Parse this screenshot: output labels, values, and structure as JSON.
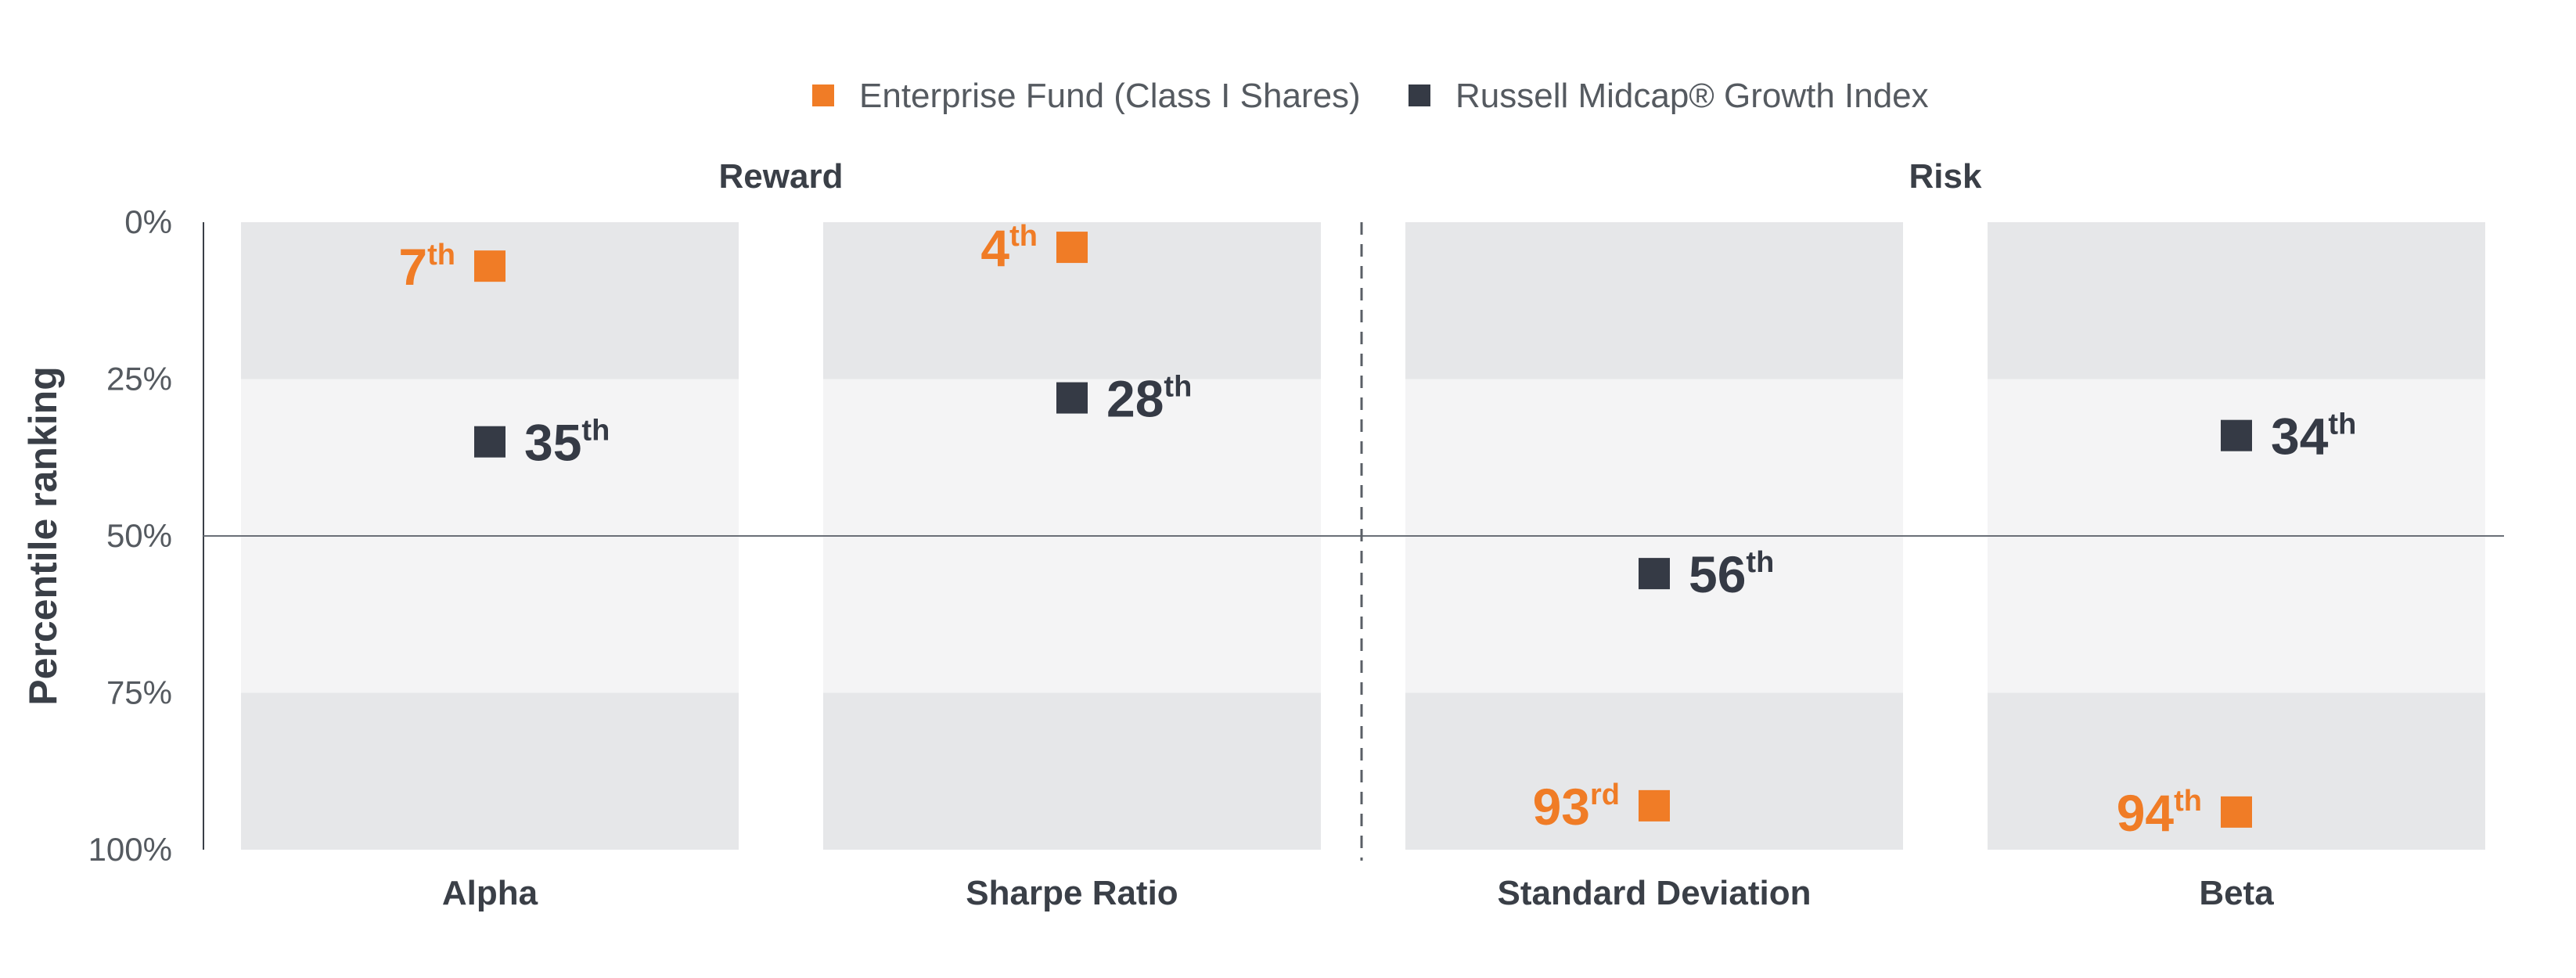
{
  "chart_data": {
    "type": "scatter",
    "ylabel": "Percentile ranking",
    "ylim": [
      0,
      100
    ],
    "y_inverted": true,
    "y_ticks": [
      {
        "value": 0,
        "label": "0%"
      },
      {
        "value": 25,
        "label": "25%"
      },
      {
        "value": 50,
        "label": "50%"
      },
      {
        "value": 75,
        "label": "75%"
      },
      {
        "value": 100,
        "label": "100%"
      }
    ],
    "reference_line": 50,
    "groups": [
      {
        "title": "Reward",
        "categories": [
          "Alpha",
          "Sharpe Ratio"
        ]
      },
      {
        "title": "Risk",
        "categories": [
          "Standard Deviation",
          "Beta"
        ]
      }
    ],
    "categories": [
      "Alpha",
      "Sharpe Ratio",
      "Standard Deviation",
      "Beta"
    ],
    "legend_position": "top-center",
    "series": [
      {
        "name": "Enterprise Fund (Class I Shares)",
        "color": "#f07c26",
        "label_side": "left",
        "values": [
          7,
          4,
          93,
          94
        ],
        "labels": [
          {
            "num": "7",
            "suffix": "th"
          },
          {
            "num": "4",
            "suffix": "th"
          },
          {
            "num": "93",
            "suffix": "rd"
          },
          {
            "num": "94",
            "suffix": "th"
          }
        ]
      },
      {
        "name": "Russell Midcap® Growth Index",
        "color": "#353a45",
        "label_side": "right",
        "values": [
          35,
          28,
          56,
          34
        ],
        "labels": [
          {
            "num": "35",
            "suffix": "th"
          },
          {
            "num": "28",
            "suffix": "th"
          },
          {
            "num": "56",
            "suffix": "th"
          },
          {
            "num": "34",
            "suffix": "th"
          }
        ]
      }
    ],
    "colors": {
      "band_dark": "#e6e7e9",
      "band_light": "#f4f4f5",
      "axis": "#3a3f47",
      "text": "#555a60"
    }
  }
}
